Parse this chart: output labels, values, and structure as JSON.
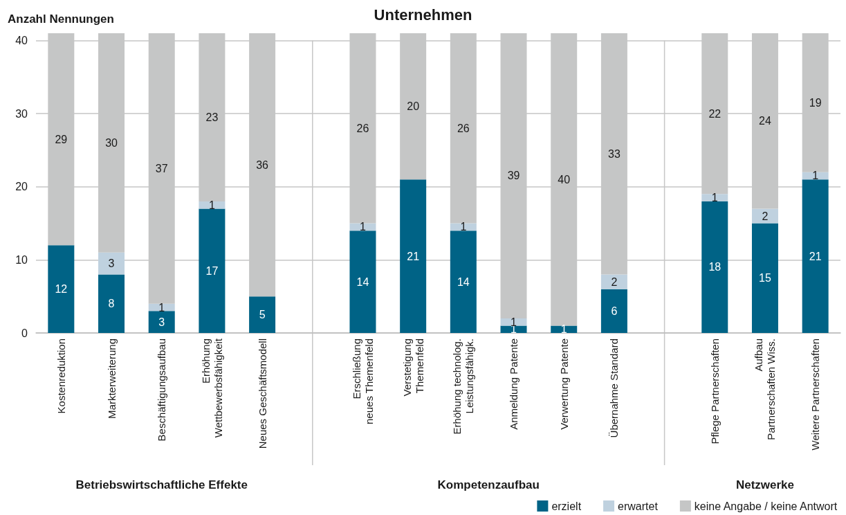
{
  "chart_data": {
    "type": "bar",
    "title": "Unternehmen",
    "ylabel": "Anzahl Nennungen",
    "categories": [
      "Kostenreduktion",
      "Markterweiterung",
      "Beschäftigungsaufbau",
      "Erhöhung\nWettbewerbsfähigkeit",
      "Neues Geschäftsmodell",
      null,
      "Erschließung\nneues Themenfeld",
      "Verstetigung\nThemenfeld",
      "Erhöhung technolog.\nLeistungsfähigk.",
      "Anmeldung Patente",
      "Verwertung Patente",
      "Übernahme Standard",
      null,
      "Pflege Partnerschaften",
      "Aufbau\nPartnerschaften Wiss.",
      "Weitere Partnerschaften"
    ],
    "series": [
      {
        "name": "erzielt",
        "color": "#006386",
        "values": [
          12,
          8,
          3,
          17,
          5,
          null,
          14,
          21,
          14,
          1,
          1,
          6,
          null,
          18,
          15,
          21
        ]
      },
      {
        "name": "erwartet",
        "color": "#bfd1df",
        "values": [
          null,
          3,
          1,
          1,
          null,
          null,
          1,
          null,
          1,
          1,
          null,
          2,
          null,
          1,
          2,
          1
        ]
      },
      {
        "name": "keine Angabe / keine Antwort",
        "color": "#c5c6c6",
        "values": [
          29,
          30,
          37,
          23,
          36,
          null,
          26,
          20,
          26,
          39,
          40,
          33,
          null,
          22,
          24,
          19
        ]
      }
    ],
    "stacked": true,
    "ylim": [
      0,
      41
    ],
    "yticks": [
      0,
      10,
      20,
      30,
      40
    ],
    "grid": true,
    "legend": "bottom right",
    "data_labels": true,
    "annotations": [
      "Betriebswirtschaftliche Effekte",
      "Kompetenzaufbau",
      "Netzwerke"
    ]
  }
}
